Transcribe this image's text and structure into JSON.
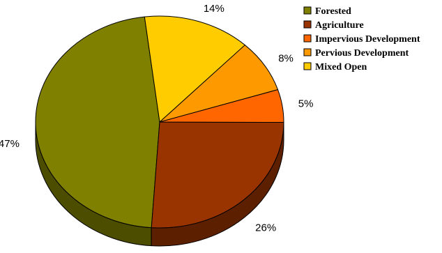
{
  "chart_data": {
    "type": "pie",
    "title": "",
    "categories": [
      "Forested",
      "Agriculture",
      "Impervious Development",
      "Pervious Development",
      "Mixed Open"
    ],
    "values": [
      47,
      26,
      5,
      8,
      14
    ],
    "value_labels": [
      "47%",
      "26%",
      "5%",
      "8%",
      "14%"
    ],
    "colors": [
      "#808000",
      "#993300",
      "#ff6600",
      "#ff9900",
      "#ffcc00"
    ],
    "side_colors": [
      "#4d4d00",
      "#5c1f00",
      "#993d00",
      "#995c00",
      "#997a00"
    ],
    "style": "3d-tilted",
    "legend_position": "top-right"
  }
}
